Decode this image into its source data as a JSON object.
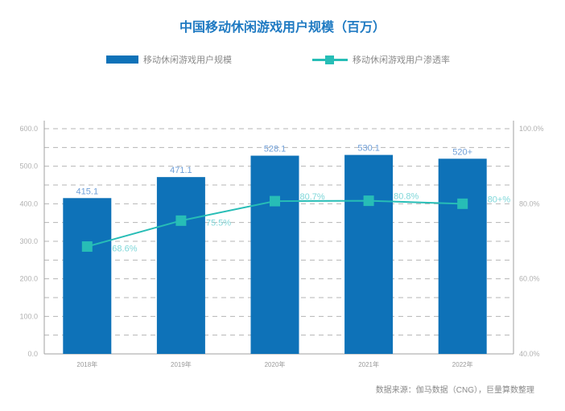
{
  "title": "中国移动休闲游戏用户规模（百万）",
  "legend": {
    "bar_label": "移动休闲游戏用户规模",
    "line_label": "移动休闲游戏用户渗透率"
  },
  "source": "数据来源：伽马数据（CNG），巨量算数整理",
  "colors": {
    "bar": "#0e72b8",
    "line": "#27bdb6",
    "title": "#1f7ac2",
    "bar_label": "#6f9fd8",
    "line_label": "#7fd7d9"
  },
  "chart_data": {
    "type": "bar",
    "title": "中国移动休闲游戏用户规模（百万）",
    "categories": [
      "2018年",
      "2019年",
      "2020年",
      "2021年",
      "2022年"
    ],
    "series": [
      {
        "name": "移动休闲游戏用户规模",
        "type": "bar",
        "axis": "left",
        "values": [
          415.1,
          471.1,
          528.1,
          530.1,
          520
        ],
        "labels": [
          "415.1",
          "471.1",
          "528.1",
          "530.1",
          "520+"
        ]
      },
      {
        "name": "移动休闲游戏用户渗透率",
        "type": "line",
        "axis": "right",
        "values": [
          68.6,
          75.5,
          80.7,
          80.8,
          80
        ],
        "labels": [
          "68.6%",
          "75.5%",
          "80.7%",
          "80.8%",
          "80+%"
        ]
      }
    ],
    "left_axis": {
      "ylim": [
        0,
        600
      ],
      "ticks": [
        "0.0",
        "100.0",
        "200.0",
        "300.0",
        "400.0",
        "500.0",
        "600.0"
      ]
    },
    "right_axis": {
      "ylim": [
        40,
        100
      ],
      "ticks": [
        "40.0%",
        "60.0%",
        "80.0%",
        "100.0%"
      ]
    },
    "xlabel": "",
    "ylabel": "",
    "grid": "dashed horizontal",
    "legend_position": "top"
  }
}
